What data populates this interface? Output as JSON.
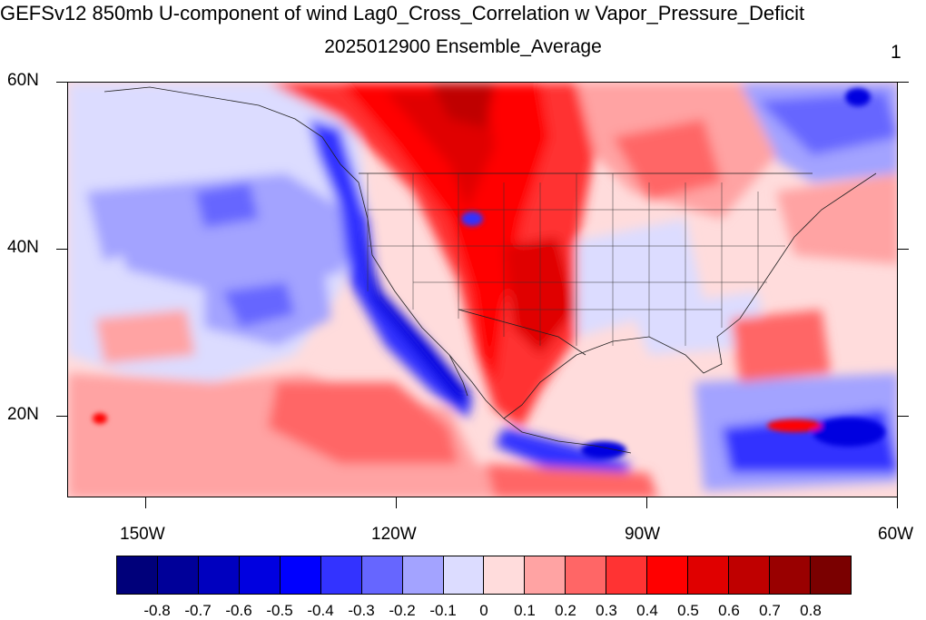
{
  "header": {
    "title": "GEFSv12 850mb U-component of wind Lag0_Cross_Correlation w Vapor_Pressure_Deficit",
    "subtitle": "2025012900 Ensemble_Average",
    "page_number": "1"
  },
  "map": {
    "lat_labels": [
      "60N",
      "40N",
      "20N"
    ],
    "lon_labels": [
      "150W",
      "120W",
      "90W",
      "60W"
    ]
  },
  "colorbar": {
    "colors": [
      "#00007a",
      "#000099",
      "#0000bf",
      "#0000e0",
      "#0000ff",
      "#3333ff",
      "#6666ff",
      "#a3a3ff",
      "#dcdcff",
      "#ffdcdc",
      "#ffa3a3",
      "#ff6666",
      "#ff3333",
      "#ff0000",
      "#e00000",
      "#bf0000",
      "#990000",
      "#7a0000"
    ],
    "labels": [
      "-0.8",
      "-0.7",
      "-0.6",
      "-0.5",
      "-0.4",
      "-0.3",
      "-0.2",
      "-0.1",
      "0",
      "0.1",
      "0.2",
      "0.3",
      "0.4",
      "0.5",
      "0.6",
      "0.7",
      "0.8"
    ]
  }
}
